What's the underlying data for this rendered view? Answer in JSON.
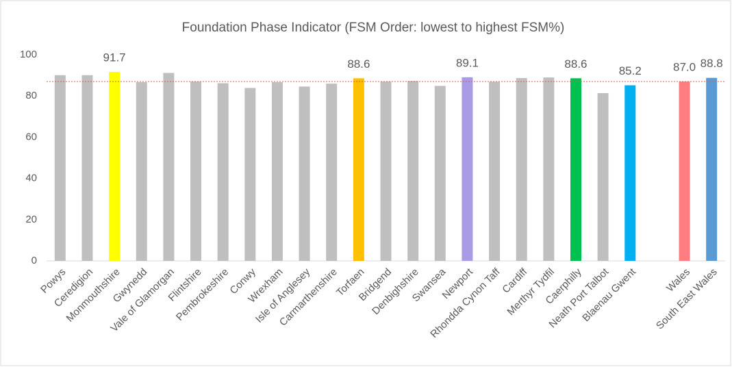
{
  "chart_data": {
    "type": "bar",
    "title": "Foundation Phase Indicator (FSM Order: lowest to highest FSM%)",
    "categories": [
      "Powys",
      "Ceredigion",
      "Monmouthshire",
      "Gwynedd",
      "Vale of Glamorgan",
      "Flintshire",
      "Pembrokeshire",
      "Conwy",
      "Wrexham",
      "Isle of Anglesey",
      "Carmarthenshire",
      "Torfaen",
      "Bridgend",
      "Denbighshire",
      "Swansea",
      "Newport",
      "Rhondda Cynon Taff",
      "Cardiff",
      "Merthyr Tydfil",
      "Caerphilly",
      "Neath Port Talbot",
      "Blaenau Gwent",
      null,
      "Wales",
      "South East Wales"
    ],
    "values": [
      90.1,
      90.1,
      91.7,
      86.7,
      91.2,
      87.0,
      86.2,
      83.9,
      86.7,
      84.6,
      86.0,
      88.6,
      87.0,
      87.3,
      84.9,
      89.1,
      86.9,
      88.7,
      89.0,
      88.6,
      81.4,
      85.2,
      null,
      87.0,
      88.8
    ],
    "value_labels": [
      null,
      null,
      "91.7",
      null,
      null,
      null,
      null,
      null,
      null,
      null,
      null,
      "88.6",
      null,
      null,
      null,
      "89.1",
      null,
      null,
      null,
      "88.6",
      null,
      "85.2",
      null,
      "87.0",
      "88.8"
    ],
    "colors": [
      "#bfbfbf",
      "#bfbfbf",
      "#ffff00",
      "#bfbfbf",
      "#bfbfbf",
      "#bfbfbf",
      "#bfbfbf",
      "#bfbfbf",
      "#bfbfbf",
      "#bfbfbf",
      "#bfbfbf",
      "#ffc000",
      "#bfbfbf",
      "#bfbfbf",
      "#bfbfbf",
      "#a99be6",
      "#bfbfbf",
      "#bfbfbf",
      "#bfbfbf",
      "#00c050",
      "#bfbfbf",
      "#00b0f0",
      null,
      "#ff7c80",
      "#5b9bd5"
    ],
    "reference_line": {
      "value": 87.0,
      "color": "#ff4d4d"
    },
    "ylim": [
      0,
      100
    ],
    "yticks": [
      0,
      20,
      40,
      60,
      80,
      100
    ],
    "grid": false
  }
}
